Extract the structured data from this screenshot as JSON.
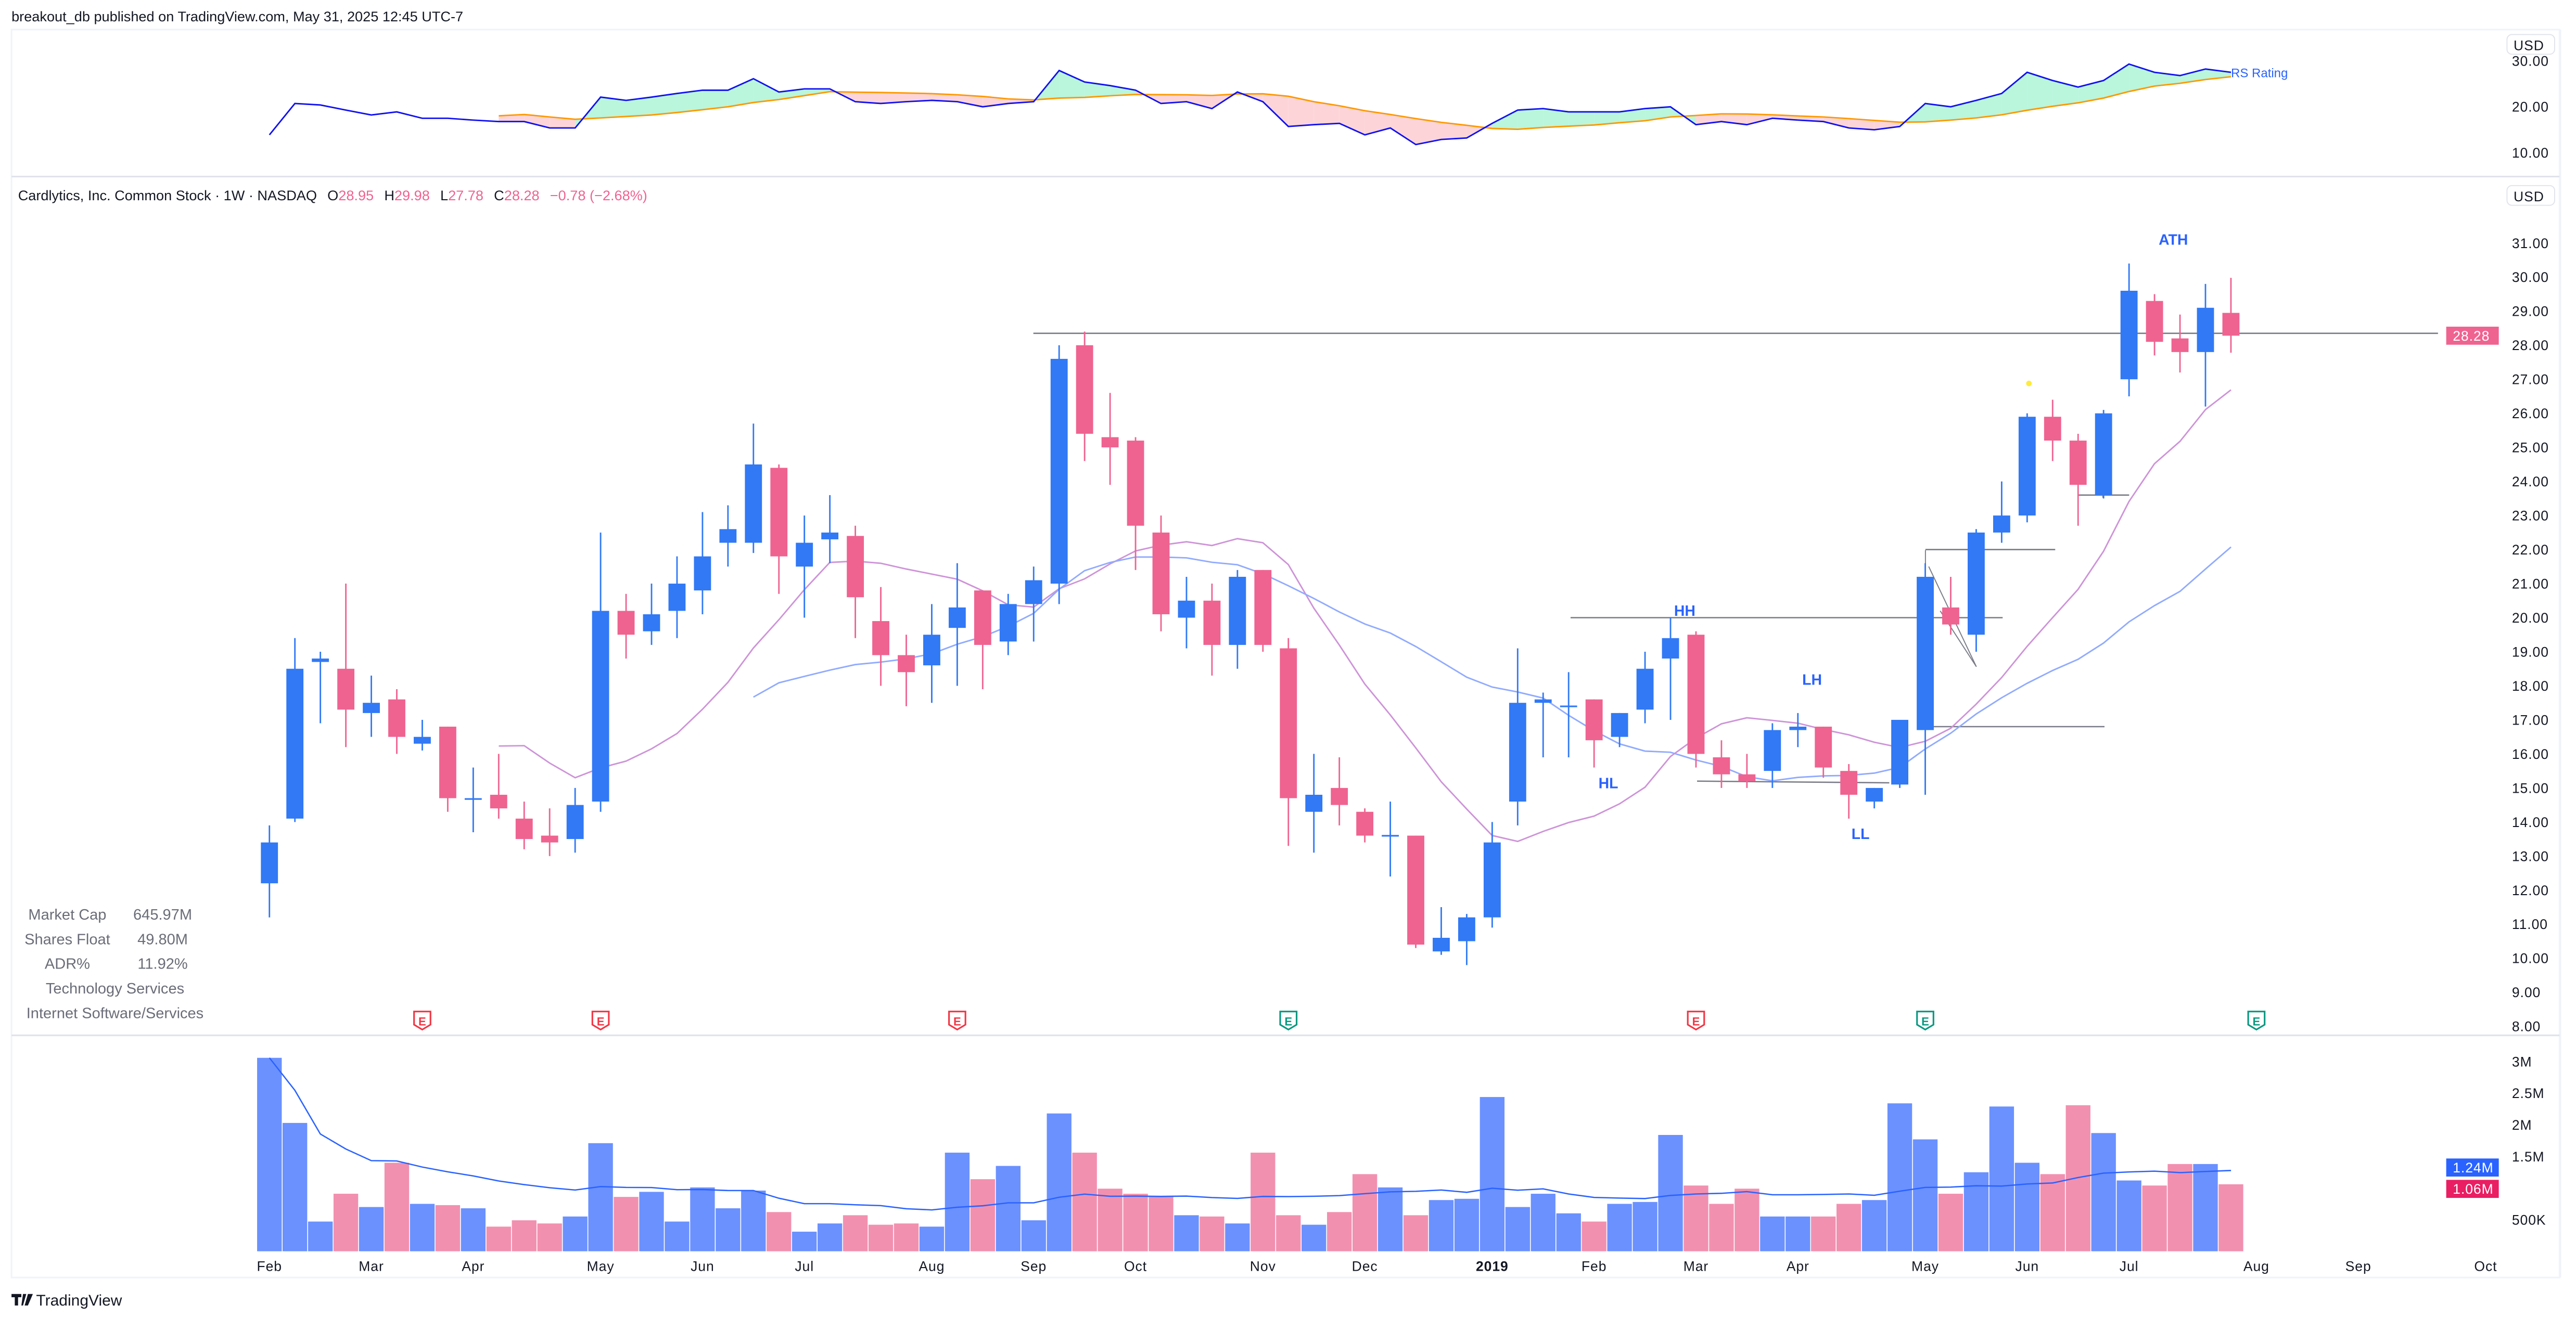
{
  "header": {
    "published": "breakout_db published on TradingView.com, May 31, 2025 12:45 UTC-7"
  },
  "legend": {
    "title": "Cardlytics, Inc. Common Stock · 1W · NASDAQ",
    "o_label": "O",
    "o": "28.95",
    "h_label": "H",
    "h": "29.98",
    "l_label": "L",
    "l": "27.78",
    "c_label": "C",
    "c": "28.28",
    "change": "−0.78 (−2.68%)"
  },
  "stats": [
    {
      "label": "Market Cap",
      "value": "645.97M"
    },
    {
      "label": "Shares Float",
      "value": "49.80M"
    },
    {
      "label": "ADR%",
      "value": "11.92%"
    }
  ],
  "sector": "Technology Services",
  "industry": "Internet Software/Services",
  "currency": "USD",
  "rs_panel": {
    "name": "RS Rating",
    "ticks": [
      "30.00",
      "20.00",
      "10.00"
    ]
  },
  "price_axis": {
    "ticks": [
      "31.00",
      "30.00",
      "29.00",
      "28.00",
      "27.00",
      "26.00",
      "25.00",
      "24.00",
      "23.00",
      "22.00",
      "21.00",
      "20.00",
      "19.00",
      "18.00",
      "17.00",
      "16.00",
      "15.00",
      "14.00",
      "13.00",
      "12.00",
      "11.00",
      "10.00",
      "9.00",
      "8.00"
    ],
    "last_price": "28.28"
  },
  "volume_axis": {
    "ticks": [
      {
        "label": "3M",
        "value": 3
      },
      {
        "label": "2.5M",
        "value": 2.5
      },
      {
        "label": "2M",
        "value": 2
      },
      {
        "label": "1.5M",
        "value": 1.5
      },
      {
        "label": "500K",
        "value": 0.5
      }
    ],
    "ma_label": "1.24M",
    "last_label": "1.06M"
  },
  "time_axis": [
    "Feb",
    "Mar",
    "Apr",
    "May",
    "Jun",
    "Jul",
    "Aug",
    "Sep",
    "Oct",
    "Nov",
    "Dec",
    "2019",
    "Feb",
    "Mar",
    "Apr",
    "May",
    "Jun",
    "Jul",
    "Aug",
    "Sep",
    "Oct"
  ],
  "annotations": {
    "hh": "HH",
    "hl": "HL",
    "lh": "LH",
    "ll": "LL",
    "ath": "ATH"
  },
  "earnings": [
    {
      "label": "E",
      "status": "miss"
    },
    {
      "label": "E",
      "status": "miss"
    },
    {
      "label": "E",
      "status": "miss"
    },
    {
      "label": "E",
      "status": "beat"
    },
    {
      "label": "E",
      "status": "miss"
    },
    {
      "label": "E",
      "status": "beat"
    },
    {
      "label": "E",
      "status": "beat"
    }
  ],
  "branding": {
    "logo": "TradingView"
  },
  "colors": {
    "up": "#3179f5",
    "down": "#ef6391",
    "vol_up": "#6b91ff",
    "vol_down": "#f290b0",
    "rs_line": "#1010f0",
    "rs_ma": "#ff9800",
    "rs_fill_up": "#b9f6dc",
    "rs_fill_down": "#fdd5d9",
    "ma_fast": "#ce93d8",
    "ma_slow": "#90aaff",
    "vol_ma": "#2962ff",
    "earn_miss": "#f23645",
    "earn_beat": "#089981",
    "last_price": "#ef6391",
    "vol_ma_badge": "#2962ff",
    "vol_last_badge": "#e91e63"
  },
  "chart_data": {
    "type": "candlestick",
    "interval": "1W",
    "ylim": [
      8,
      31
    ],
    "ohlc": [
      [
        12.2,
        13.9,
        11.2,
        13.4
      ],
      [
        14.1,
        19.4,
        14.0,
        18.5
      ],
      [
        18.7,
        19.0,
        16.9,
        18.8
      ],
      [
        18.5,
        21.0,
        16.2,
        17.3
      ],
      [
        17.2,
        18.3,
        16.5,
        17.5
      ],
      [
        17.6,
        17.9,
        16.0,
        16.5
      ],
      [
        16.3,
        17.0,
        16.1,
        16.5
      ],
      [
        16.8,
        16.8,
        14.3,
        14.7
      ],
      [
        14.7,
        15.6,
        13.7,
        14.7
      ],
      [
        14.8,
        16.0,
        14.1,
        14.4
      ],
      [
        14.1,
        14.6,
        13.2,
        13.5
      ],
      [
        13.6,
        14.4,
        13.0,
        13.4
      ],
      [
        13.5,
        15.0,
        13.1,
        14.5
      ],
      [
        14.6,
        22.5,
        14.3,
        20.2
      ],
      [
        20.2,
        20.7,
        18.8,
        19.5
      ],
      [
        19.6,
        21.0,
        19.2,
        20.1
      ],
      [
        20.2,
        21.8,
        19.4,
        21.0
      ],
      [
        20.8,
        23.1,
        20.1,
        21.8
      ],
      [
        22.2,
        23.3,
        21.5,
        22.6
      ],
      [
        22.2,
        25.7,
        21.9,
        24.5
      ],
      [
        24.4,
        24.5,
        20.7,
        21.8
      ],
      [
        21.5,
        23.0,
        20.0,
        22.2
      ],
      [
        22.3,
        23.6,
        21.6,
        22.5
      ],
      [
        22.4,
        22.7,
        19.4,
        20.6
      ],
      [
        19.9,
        20.9,
        18.0,
        18.9
      ],
      [
        18.9,
        19.5,
        17.4,
        18.4
      ],
      [
        18.6,
        20.4,
        17.5,
        19.5
      ],
      [
        19.7,
        21.6,
        18.0,
        20.3
      ],
      [
        20.8,
        20.8,
        17.9,
        19.2
      ],
      [
        19.3,
        20.7,
        18.9,
        20.4
      ],
      [
        20.4,
        21.5,
        19.3,
        21.1
      ],
      [
        21.0,
        28.0,
        20.4,
        27.6
      ],
      [
        28.0,
        28.4,
        24.6,
        25.4
      ],
      [
        25.3,
        26.6,
        23.9,
        25.0
      ],
      [
        25.2,
        25.3,
        21.4,
        22.7
      ],
      [
        22.5,
        23.0,
        19.6,
        20.1
      ],
      [
        20.0,
        21.2,
        19.1,
        20.5
      ],
      [
        20.5,
        21.0,
        18.3,
        19.2
      ],
      [
        19.2,
        21.4,
        18.5,
        21.2
      ],
      [
        21.4,
        21.4,
        19.0,
        19.2
      ],
      [
        19.1,
        19.4,
        13.3,
        14.7
      ],
      [
        14.3,
        16.0,
        13.1,
        14.8
      ],
      [
        15.0,
        15.9,
        13.9,
        14.5
      ],
      [
        14.3,
        14.4,
        13.4,
        13.6
      ],
      [
        13.6,
        14.6,
        12.4,
        13.62
      ],
      [
        13.6,
        13.6,
        10.3,
        10.4
      ],
      [
        10.2,
        11.5,
        10.1,
        10.6
      ],
      [
        10.5,
        11.3,
        9.8,
        11.2
      ],
      [
        11.2,
        14.0,
        10.9,
        13.4
      ],
      [
        14.6,
        19.1,
        13.9,
        17.5
      ],
      [
        17.5,
        17.8,
        15.9,
        17.6
      ],
      [
        17.4,
        18.4,
        15.9,
        17.42
      ],
      [
        17.6,
        17.6,
        15.6,
        16.4
      ],
      [
        16.5,
        17.2,
        16.2,
        17.2
      ],
      [
        17.3,
        19.0,
        16.9,
        18.5
      ],
      [
        18.8,
        20.0,
        17.0,
        19.4
      ],
      [
        19.5,
        19.6,
        15.6,
        16.0
      ],
      [
        15.9,
        16.4,
        15.0,
        15.4
      ],
      [
        15.4,
        16.0,
        15.0,
        15.2
      ],
      [
        15.5,
        16.9,
        15.0,
        16.7
      ],
      [
        16.7,
        17.2,
        16.2,
        16.8
      ],
      [
        16.8,
        16.8,
        15.3,
        15.6
      ],
      [
        15.5,
        15.7,
        14.1,
        14.8
      ],
      [
        14.6,
        15.0,
        14.4,
        15.0
      ],
      [
        15.1,
        17.0,
        15.0,
        17.0
      ],
      [
        16.7,
        21.6,
        14.8,
        21.2
      ],
      [
        20.3,
        21.2,
        19.5,
        19.8
      ],
      [
        19.5,
        22.6,
        19.0,
        22.5
      ],
      [
        22.5,
        24.0,
        22.2,
        23.0
      ],
      [
        23.0,
        26.0,
        22.8,
        25.9
      ],
      [
        25.9,
        26.4,
        24.6,
        25.2
      ],
      [
        25.2,
        25.4,
        22.7,
        23.9
      ],
      [
        23.6,
        26.1,
        23.5,
        26.0
      ],
      [
        27.0,
        30.4,
        26.5,
        29.6
      ],
      [
        29.3,
        29.5,
        27.7,
        28.1
      ],
      [
        28.2,
        28.9,
        27.2,
        27.8
      ],
      [
        27.8,
        29.8,
        26.2,
        29.1
      ],
      [
        28.95,
        29.98,
        27.78,
        28.28
      ]
    ],
    "volume_millions": [
      3.06,
      2.03,
      0.47,
      0.91,
      0.7,
      1.4,
      0.75,
      0.73,
      0.68,
      0.39,
      0.49,
      0.44,
      0.55,
      1.71,
      0.86,
      0.94,
      0.47,
      1.01,
      0.68,
      0.96,
      0.62,
      0.31,
      0.44,
      0.57,
      0.42,
      0.44,
      0.39,
      1.56,
      1.14,
      1.35,
      0.49,
      2.18,
      1.56,
      0.99,
      0.91,
      0.86,
      0.57,
      0.55,
      0.44,
      1.56,
      0.57,
      0.42,
      0.62,
      1.22,
      1.01,
      0.57,
      0.81,
      0.83,
      2.44,
      0.7,
      0.91,
      0.6,
      0.47,
      0.75,
      0.78,
      1.84,
      1.04,
      0.75,
      0.99,
      0.55,
      0.55,
      0.55,
      0.75,
      0.81,
      2.34,
      1.77,
      0.91,
      1.25,
      2.29,
      1.4,
      1.22,
      2.31,
      1.87,
      1.12,
      1.04,
      1.38,
      1.38,
      1.06
    ],
    "rs_rating": [
      13.9,
      20.7,
      20.4,
      19.3,
      18.2,
      18.9,
      17.5,
      17.5,
      17.1,
      16.8,
      16.8,
      15.4,
      15.4,
      22.1,
      21.4,
      22.1,
      22.9,
      23.6,
      23.6,
      26.1,
      23.2,
      23.9,
      23.9,
      21.1,
      20.7,
      21.1,
      21.4,
      21.1,
      20.0,
      20.7,
      21.1,
      27.9,
      25.4,
      24.6,
      23.6,
      20.7,
      21.1,
      19.6,
      23.2,
      21.1,
      15.7,
      16.1,
      16.4,
      13.9,
      15.4,
      11.8,
      12.9,
      13.2,
      16.4,
      19.3,
      19.6,
      18.9,
      18.9,
      18.9,
      19.6,
      20.0,
      16.1,
      16.8,
      16.1,
      17.5,
      17.1,
      16.8,
      15.4,
      15.0,
      15.7,
      20.7,
      20.0,
      21.4,
      22.9,
      27.5,
      25.7,
      24.3,
      25.7,
      29.3,
      27.5,
      26.8,
      28.2,
      27.5
    ],
    "levels": [
      28.35,
      20.0,
      15.2,
      22.0,
      16.8,
      23.6
    ]
  }
}
